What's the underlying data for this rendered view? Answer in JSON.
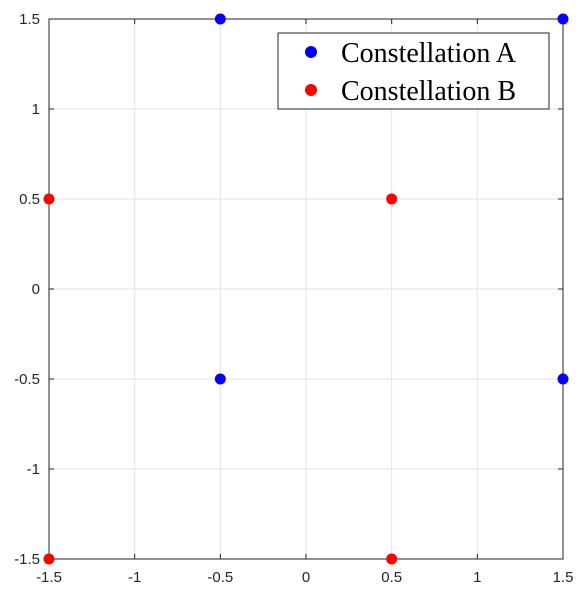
{
  "chart_data": {
    "type": "scatter",
    "xlim": [
      -1.5,
      1.5
    ],
    "ylim": [
      -1.5,
      1.5
    ],
    "xticks": [
      "-1.5",
      "-1",
      "-0.5",
      "0",
      "0.5",
      "1",
      "1.5"
    ],
    "yticks": [
      "1.5",
      "1",
      "0.5",
      "0",
      "-0.5",
      "-1",
      "-1.5"
    ],
    "grid": true,
    "legend_position": "top-right",
    "series": [
      {
        "name": "Constellation A",
        "color": "#0000ff",
        "points": [
          {
            "x": -0.5,
            "y": 1.5
          },
          {
            "x": 1.5,
            "y": 1.5
          },
          {
            "x": -0.5,
            "y": -0.5
          },
          {
            "x": 1.5,
            "y": -0.5
          }
        ]
      },
      {
        "name": "Constellation B",
        "color": "#ff0000",
        "points": [
          {
            "x": -1.5,
            "y": 0.5
          },
          {
            "x": 0.5,
            "y": 0.5
          },
          {
            "x": -1.5,
            "y": -1.5
          },
          {
            "x": 0.5,
            "y": -1.5
          }
        ]
      }
    ]
  }
}
